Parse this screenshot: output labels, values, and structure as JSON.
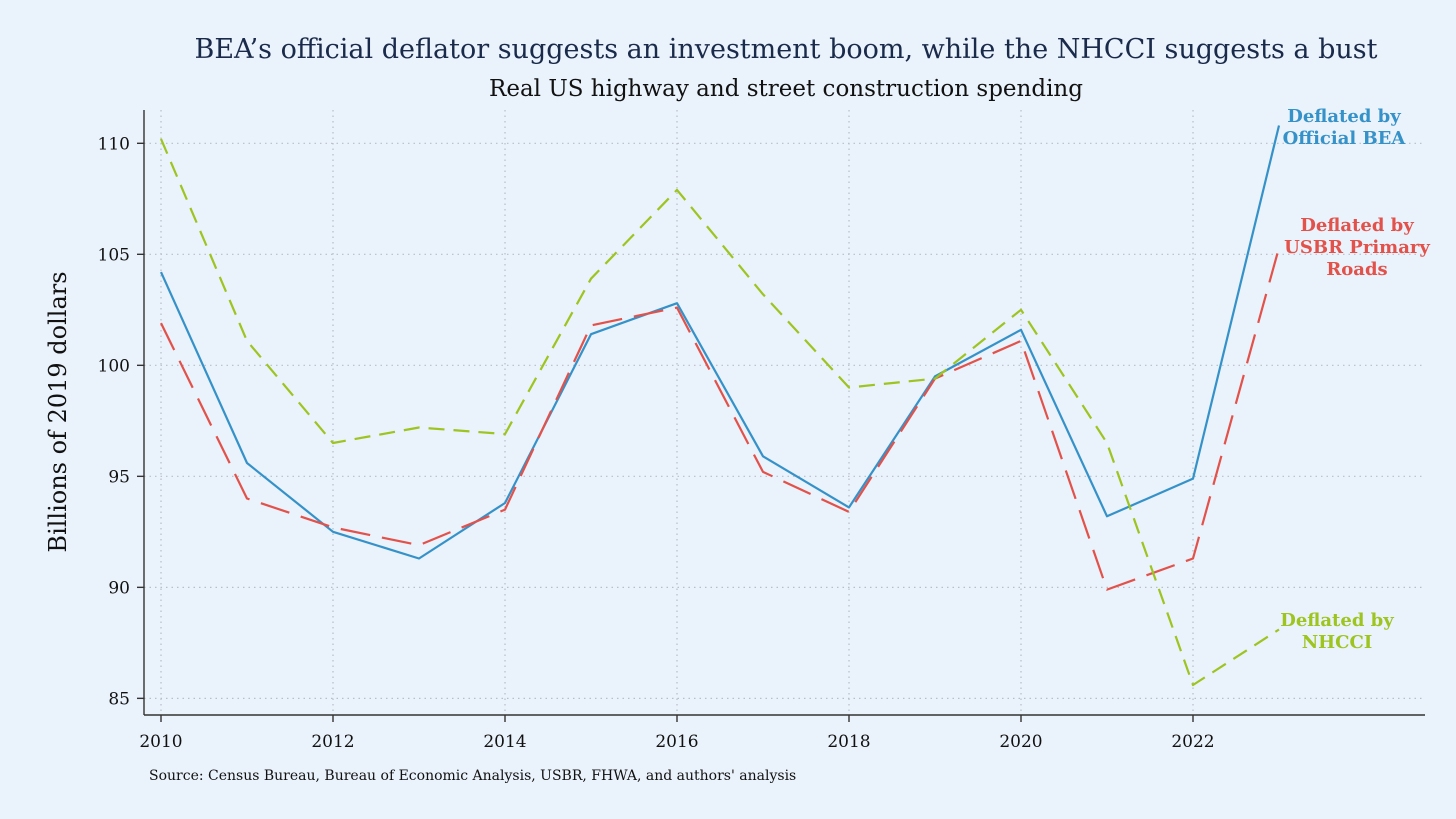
{
  "chart_data": {
    "type": "line",
    "title": "BEA’s official deflator suggests an investment boom, while the NHCCI suggests a bust",
    "subtitle": "Real US highway and street construction spending",
    "xlabel": "",
    "ylabel": "Billions of 2019 dollars",
    "source": "Source: Census Bureau, Bureau of Economic Analysis, USBR, FHWA, and authors' analysis",
    "x": [
      2010,
      2011,
      2012,
      2013,
      2014,
      2015,
      2016,
      2017,
      2018,
      2019,
      2020,
      2021,
      2022,
      2023
    ],
    "xlim": [
      2010,
      2025
    ],
    "ylim": [
      84.25,
      111.5
    ],
    "x_ticks": [
      2010,
      2012,
      2014,
      2016,
      2018,
      2020,
      2022
    ],
    "x_tick_labels": [
      "2010",
      "2012",
      "2014",
      "2016",
      "2018",
      "2020",
      "2022"
    ],
    "y_ticks": [
      85,
      90,
      95,
      100,
      105,
      110
    ],
    "y_tick_labels": [
      "85",
      "90",
      "95",
      "100",
      "105",
      "110"
    ],
    "grid": true,
    "series": [
      {
        "name": "Deflated by Official BEA",
        "label_lines": [
          "Deflated by",
          "Official BEA"
        ],
        "color": "#3592c9",
        "style": "solid",
        "values": [
          104.2,
          95.6,
          92.5,
          91.3,
          93.8,
          101.4,
          102.8,
          95.9,
          93.6,
          99.5,
          101.6,
          93.2,
          94.9,
          110.8
        ]
      },
      {
        "name": "Deflated by USBR Primary Roads",
        "label_lines": [
          "Deflated by",
          "USBR Primary",
          "Roads"
        ],
        "color": "#e2524a",
        "style": "longdash",
        "values": [
          101.9,
          94.0,
          92.7,
          91.9,
          93.5,
          101.8,
          102.6,
          95.2,
          93.4,
          99.4,
          101.1,
          89.9,
          91.3,
          105.3
        ]
      },
      {
        "name": "Deflated by NHCCI",
        "label_lines": [
          "Deflated by",
          "NHCCI"
        ],
        "color": "#9dc41f",
        "style": "dash",
        "values": [
          110.2,
          101.1,
          96.5,
          97.2,
          96.9,
          103.9,
          107.9,
          103.2,
          99.0,
          99.4,
          102.5,
          96.5,
          85.6,
          88.1
        ]
      }
    ]
  }
}
